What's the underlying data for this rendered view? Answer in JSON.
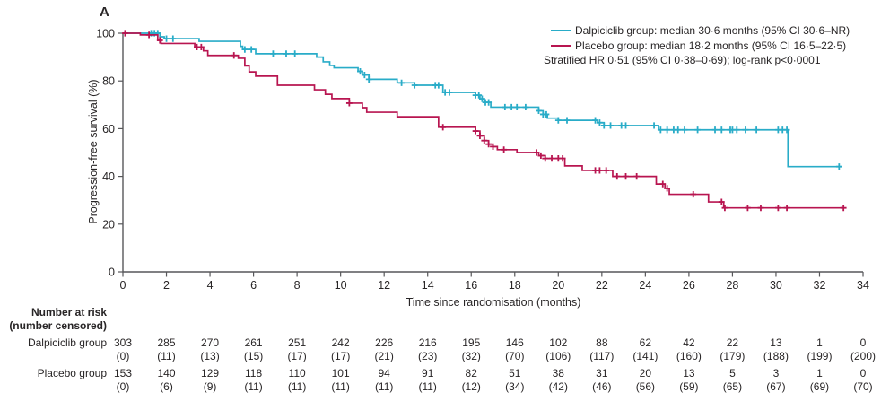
{
  "panel_label": "A",
  "colors": {
    "dalpiciclib": "#29ACC8",
    "placebo": "#B81550",
    "axis": "#57575A",
    "text": "#282526"
  },
  "legend": {
    "items": [
      {
        "name": "Dalpiciclib group",
        "label": "Dalpiciclib group: median 30·6 months (95% CI 30·6–NR)"
      },
      {
        "name": "Placebo group",
        "label": "Placebo group: median 18·2 months (95% CI 16·5–22·5)"
      }
    ],
    "note": "Stratified HR 0·51 (95% CI 0·38–0·69); log-rank p<0·0001"
  },
  "chart_data": {
    "type": "line",
    "subtype": "kaplan-meier-step",
    "title": "",
    "xlabel": "Time since randomisation (months)",
    "ylabel": "Progression-free survival (%)",
    "xlim": [
      0,
      34
    ],
    "ylim": [
      0,
      100
    ],
    "xticks": [
      0,
      2,
      4,
      6,
      8,
      10,
      12,
      14,
      16,
      18,
      20,
      22,
      24,
      26,
      28,
      30,
      32,
      34
    ],
    "yticks": [
      0,
      20,
      40,
      60,
      80,
      100
    ],
    "grid": false,
    "legend_position": "top-right",
    "series": [
      {
        "name": "Dalpiciclib group",
        "color_key": "dalpiciclib",
        "median_months": "30·6",
        "ci": "30·6–NR",
        "end_month": 33.0,
        "steps": [
          [
            0,
            100
          ],
          [
            1.7,
            98.5
          ],
          [
            1.9,
            97.7
          ],
          [
            3.5,
            96.6
          ],
          [
            5.4,
            94.5
          ],
          [
            5.5,
            93.2
          ],
          [
            6.1,
            91.4
          ],
          [
            8.9,
            90.0
          ],
          [
            9.2,
            88.0
          ],
          [
            9.5,
            86.5
          ],
          [
            9.7,
            85.5
          ],
          [
            10.8,
            84.0
          ],
          [
            11.0,
            82.5
          ],
          [
            11.3,
            80.7
          ],
          [
            12.6,
            79.2
          ],
          [
            13.4,
            78.2
          ],
          [
            14.7,
            75.2
          ],
          [
            16.2,
            74.0
          ],
          [
            16.4,
            72.5
          ],
          [
            16.6,
            71.0
          ],
          [
            16.9,
            69.0
          ],
          [
            19.1,
            67.5
          ],
          [
            19.3,
            66.0
          ],
          [
            19.5,
            64.4
          ],
          [
            20.0,
            63.5
          ],
          [
            21.8,
            62.5
          ],
          [
            22.1,
            61.3
          ],
          [
            24.6,
            59.5
          ],
          [
            30.55,
            44.1
          ]
        ],
        "censor_months": [
          1.3,
          1.45,
          1.6,
          2.0,
          2.3,
          5.6,
          5.9,
          6.9,
          7.5,
          7.9,
          10.9,
          11.1,
          11.3,
          12.8,
          13.4,
          14.35,
          14.5,
          14.8,
          15.0,
          16.2,
          16.35,
          16.5,
          16.65,
          16.8,
          17.55,
          17.85,
          18.1,
          18.5,
          19.1,
          19.3,
          19.45,
          20.0,
          20.4,
          21.7,
          21.9,
          22.1,
          22.4,
          22.9,
          23.1,
          24.4,
          24.7,
          25.0,
          25.3,
          25.5,
          25.8,
          26.4,
          27.2,
          27.5,
          27.9,
          28.0,
          28.2,
          28.6,
          29.1,
          30.1,
          30.3,
          30.5,
          32.9
        ]
      },
      {
        "name": "Placebo group",
        "color_key": "placebo",
        "median_months": "18·2",
        "ci": "16·5–22·5",
        "end_month": 33.1,
        "steps": [
          [
            0,
            100
          ],
          [
            0.8,
            99.3
          ],
          [
            1.6,
            97.0
          ],
          [
            1.75,
            95.7
          ],
          [
            3.3,
            94.2
          ],
          [
            3.7,
            92.6
          ],
          [
            3.9,
            90.7
          ],
          [
            5.3,
            89.5
          ],
          [
            5.6,
            86.3
          ],
          [
            5.8,
            83.8
          ],
          [
            6.1,
            82.0
          ],
          [
            7.1,
            78.2
          ],
          [
            8.8,
            76.3
          ],
          [
            9.3,
            74.4
          ],
          [
            9.6,
            72.6
          ],
          [
            10.4,
            70.7
          ],
          [
            11.0,
            68.8
          ],
          [
            11.2,
            66.9
          ],
          [
            12.6,
            65.0
          ],
          [
            14.5,
            60.6
          ],
          [
            16.2,
            59.0
          ],
          [
            16.4,
            57.0
          ],
          [
            16.6,
            55.0
          ],
          [
            16.8,
            53.5
          ],
          [
            17.0,
            52.5
          ],
          [
            17.2,
            51.2
          ],
          [
            18.1,
            50.0
          ],
          [
            19.1,
            48.7
          ],
          [
            19.4,
            47.5
          ],
          [
            20.3,
            44.4
          ],
          [
            21.1,
            42.5
          ],
          [
            22.5,
            40.0
          ],
          [
            24.5,
            36.8
          ],
          [
            24.9,
            35.0
          ],
          [
            25.1,
            32.5
          ],
          [
            26.9,
            29.3
          ],
          [
            27.6,
            26.8
          ]
        ],
        "censor_months": [
          0.1,
          1.2,
          1.7,
          3.4,
          3.6,
          5.1,
          10.4,
          14.7,
          16.2,
          16.4,
          16.6,
          16.8,
          17.0,
          17.5,
          19.0,
          19.2,
          19.4,
          19.7,
          20.0,
          20.2,
          21.7,
          21.9,
          22.2,
          22.7,
          23.1,
          23.6,
          24.8,
          25.0,
          26.2,
          27.5,
          27.65,
          28.7,
          29.3,
          30.1,
          30.5,
          33.1
        ]
      }
    ]
  },
  "risk_table": {
    "header_line1": "Number at risk",
    "header_line2": "(number censored)",
    "timepoints": [
      0,
      2,
      4,
      6,
      8,
      10,
      12,
      14,
      16,
      18,
      20,
      22,
      24,
      26,
      28,
      30,
      32,
      34
    ],
    "rows": [
      {
        "label": "Dalpiciclib group",
        "at_risk": [
          303,
          285,
          270,
          261,
          251,
          242,
          226,
          216,
          195,
          146,
          102,
          88,
          62,
          42,
          22,
          13,
          1,
          0
        ],
        "censored": [
          0,
          11,
          13,
          15,
          17,
          17,
          21,
          23,
          32,
          70,
          106,
          117,
          141,
          160,
          179,
          188,
          199,
          200
        ]
      },
      {
        "label": "Placebo group",
        "at_risk": [
          153,
          140,
          129,
          118,
          110,
          101,
          94,
          91,
          82,
          51,
          38,
          31,
          20,
          13,
          5,
          3,
          1,
          0
        ],
        "censored": [
          0,
          6,
          9,
          11,
          11,
          11,
          11,
          11,
          12,
          34,
          42,
          46,
          56,
          59,
          65,
          67,
          69,
          70
        ]
      }
    ]
  }
}
